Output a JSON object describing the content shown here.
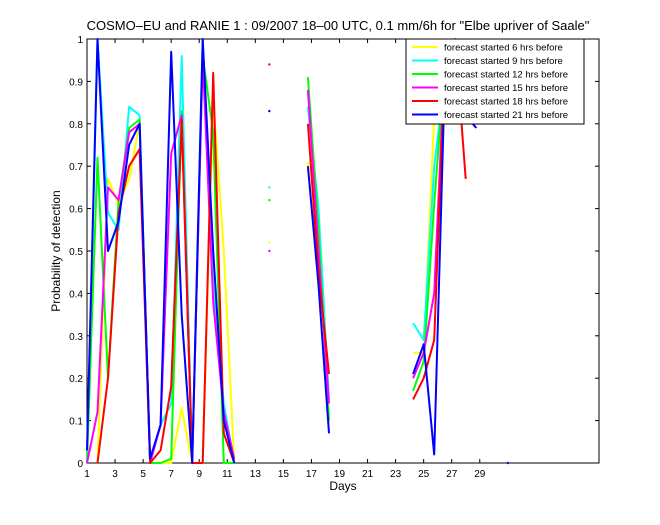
{
  "chart_data": {
    "type": "line",
    "title": "COSMO–EU and RANIE 1 : 09/2007 18–00 UTC, 0.1 mm/6h for \"Elbe upriver of Saale\"",
    "xlabel": "Days",
    "ylabel": "Probability of detection",
    "xlim": [
      1,
      37.5
    ],
    "ylim": [
      0,
      1
    ],
    "xticks": [
      1,
      3,
      5,
      7,
      9,
      11,
      13,
      15,
      17,
      19,
      21,
      23,
      25,
      27,
      29
    ],
    "yticks": [
      0,
      0.1,
      0.2,
      0.3,
      0.4,
      0.5,
      0.6,
      0.7,
      0.8,
      0.9,
      1
    ],
    "ytick_labels": [
      "0",
      "0.1",
      "0.2",
      "0.3",
      "0.4",
      "0.5",
      "0.6",
      "0.7",
      "0.8",
      "0.9",
      "1"
    ],
    "grid": false,
    "legend_position": "top-right",
    "series": [
      {
        "name": "forecast started 6 hrs before",
        "color": "#ffff00",
        "segments": [
          [
            [
              1.75,
              0.0
            ],
            [
              2.5,
              0.67
            ],
            [
              3.25,
              0.61
            ],
            [
              4.0,
              0.67
            ],
            [
              4.75,
              0.8
            ],
            [
              5.5,
              0.0
            ],
            [
              6.25,
              0.0
            ],
            [
              7.0,
              0.0
            ],
            [
              7.75,
              0.13
            ],
            [
              8.5,
              0.0
            ],
            [
              9.25,
              0.0
            ],
            [
              10.0,
              0.86
            ],
            [
              10.75,
              0.5
            ],
            [
              11.5,
              0.0
            ]
          ],
          [
            [
              16.75,
              0.71
            ],
            [
              17.5,
              0.42
            ],
            [
              18.25,
              0.07
            ]
          ],
          [
            [
              24.25,
              0.26
            ],
            [
              25.0,
              0.26
            ],
            [
              25.75,
              0.82
            ],
            [
              26.5,
              0.93
            ],
            [
              27.25,
              0.97
            ],
            [
              28.0,
              1.0
            ]
          ]
        ],
        "points": [
          [
            14.0,
            0.52
          ]
        ]
      },
      {
        "name": "forecast started 9 hrs before",
        "color": "#00ffff",
        "segments": [
          [
            [
              1.0,
              0.0
            ],
            [
              1.75,
              1.0
            ],
            [
              2.5,
              0.59
            ],
            [
              3.25,
              0.55
            ],
            [
              4.0,
              0.84
            ],
            [
              4.75,
              0.82
            ],
            [
              5.5,
              0.0
            ],
            [
              6.25,
              0.09
            ],
            [
              7.0,
              0.14
            ],
            [
              7.75,
              0.96
            ],
            [
              8.5,
              0.0
            ],
            [
              9.25,
              1.0
            ],
            [
              10.0,
              0.42
            ],
            [
              10.75,
              0.14
            ],
            [
              11.5,
              0.0
            ]
          ],
          [
            [
              16.75,
              0.84
            ],
            [
              17.5,
              0.6
            ],
            [
              18.25,
              0.15
            ]
          ],
          [
            [
              24.25,
              0.33
            ],
            [
              25.0,
              0.29
            ],
            [
              25.75,
              0.7
            ],
            [
              26.5,
              0.9
            ],
            [
              27.25,
              0.97
            ],
            [
              28.0,
              0.97
            ],
            [
              28.75,
              0.95
            ]
          ]
        ],
        "points": [
          [
            14.0,
            0.65
          ]
        ]
      },
      {
        "name": "forecast started 12 hrs before",
        "color": "#00ff00",
        "segments": [
          [
            [
              1.0,
              0.0
            ],
            [
              1.75,
              0.72
            ],
            [
              2.5,
              0.2
            ],
            [
              3.25,
              0.62
            ],
            [
              4.0,
              0.79
            ],
            [
              4.75,
              0.81
            ],
            [
              5.5,
              0.0
            ],
            [
              6.25,
              0.0
            ],
            [
              7.0,
              0.01
            ],
            [
              7.75,
              0.83
            ],
            [
              8.5,
              0.0
            ],
            [
              9.25,
              0.96
            ],
            [
              10.0,
              0.78
            ],
            [
              10.75,
              0.0
            ],
            [
              11.5,
              0.0
            ]
          ],
          [
            [
              16.75,
              0.91
            ],
            [
              17.5,
              0.55
            ],
            [
              18.25,
              0.1
            ]
          ],
          [
            [
              24.25,
              0.17
            ],
            [
              25.0,
              0.24
            ],
            [
              25.75,
              0.61
            ],
            [
              26.5,
              0.94
            ],
            [
              27.25,
              0.98
            ],
            [
              28.0,
              0.98
            ],
            [
              28.75,
              0.88
            ]
          ]
        ],
        "points": [
          [
            14.0,
            0.62
          ]
        ]
      },
      {
        "name": "forecast started 15 hrs before",
        "color": "#ff00ff",
        "segments": [
          [
            [
              1.0,
              0.0
            ],
            [
              1.75,
              0.12
            ],
            [
              2.5,
              0.65
            ],
            [
              3.25,
              0.62
            ],
            [
              4.0,
              0.78
            ],
            [
              4.75,
              0.8
            ],
            [
              5.5,
              0.0
            ],
            [
              6.25,
              0.09
            ],
            [
              7.0,
              0.73
            ],
            [
              7.75,
              0.82
            ],
            [
              8.5,
              0.0
            ],
            [
              9.25,
              0.96
            ],
            [
              10.0,
              0.38
            ],
            [
              10.75,
              0.12
            ],
            [
              11.5,
              0.01
            ]
          ],
          [
            [
              16.75,
              0.88
            ],
            [
              17.5,
              0.5
            ],
            [
              18.25,
              0.14
            ]
          ],
          [
            [
              24.25,
              0.2
            ],
            [
              25.0,
              0.26
            ],
            [
              25.75,
              0.4
            ],
            [
              26.5,
              0.95
            ],
            [
              27.25,
              0.98
            ],
            [
              28.0,
              0.98
            ],
            [
              28.75,
              0.82
            ]
          ]
        ],
        "points": [
          [
            14.0,
            0.5
          ]
        ]
      },
      {
        "name": "forecast started 18 hrs before",
        "color": "#ff0000",
        "segments": [
          [
            [
              1.75,
              0.0
            ],
            [
              2.5,
              0.2
            ],
            [
              3.25,
              0.59
            ],
            [
              4.0,
              0.7
            ],
            [
              4.75,
              0.74
            ],
            [
              5.5,
              0.0
            ],
            [
              6.25,
              0.03
            ],
            [
              7.0,
              0.18
            ],
            [
              7.75,
              0.81
            ],
            [
              8.5,
              0.0
            ],
            [
              9.25,
              0.0
            ],
            [
              10.0,
              0.92
            ],
            [
              10.75,
              0.07
            ],
            [
              11.5,
              0.0
            ]
          ],
          [
            [
              16.75,
              0.8
            ],
            [
              17.5,
              0.45
            ],
            [
              18.25,
              0.21
            ]
          ],
          [
            [
              24.25,
              0.15
            ],
            [
              25.0,
              0.2
            ],
            [
              25.75,
              0.29
            ],
            [
              26.5,
              0.94
            ],
            [
              27.25,
              1.0
            ],
            [
              28.0,
              0.67
            ]
          ]
        ],
        "points": [
          [
            14.0,
            0.94
          ]
        ]
      },
      {
        "name": "forecast started 21 hrs before",
        "color": "#0000ff",
        "segments": [
          [
            [
              1.0,
              0.03
            ],
            [
              1.75,
              1.0
            ],
            [
              2.5,
              0.5
            ],
            [
              3.25,
              0.57
            ],
            [
              4.0,
              0.75
            ],
            [
              4.75,
              0.8
            ],
            [
              5.5,
              0.01
            ],
            [
              6.25,
              0.09
            ],
            [
              7.0,
              0.97
            ],
            [
              7.75,
              0.35
            ],
            [
              8.5,
              0.0
            ],
            [
              9.25,
              1.0
            ],
            [
              10.0,
              0.5
            ],
            [
              10.75,
              0.1
            ],
            [
              11.5,
              0.0
            ]
          ],
          [
            [
              16.75,
              0.7
            ],
            [
              17.5,
              0.42
            ],
            [
              18.25,
              0.07
            ]
          ],
          [
            [
              24.25,
              0.21
            ],
            [
              25.0,
              0.28
            ],
            [
              25.75,
              0.02
            ],
            [
              26.5,
              0.9
            ],
            [
              27.25,
              0.97
            ],
            [
              28.0,
              0.82
            ],
            [
              28.75,
              0.79
            ]
          ]
        ],
        "points": [
          [
            14.0,
            0.83
          ],
          [
            31.0,
            0.0
          ]
        ]
      }
    ]
  }
}
